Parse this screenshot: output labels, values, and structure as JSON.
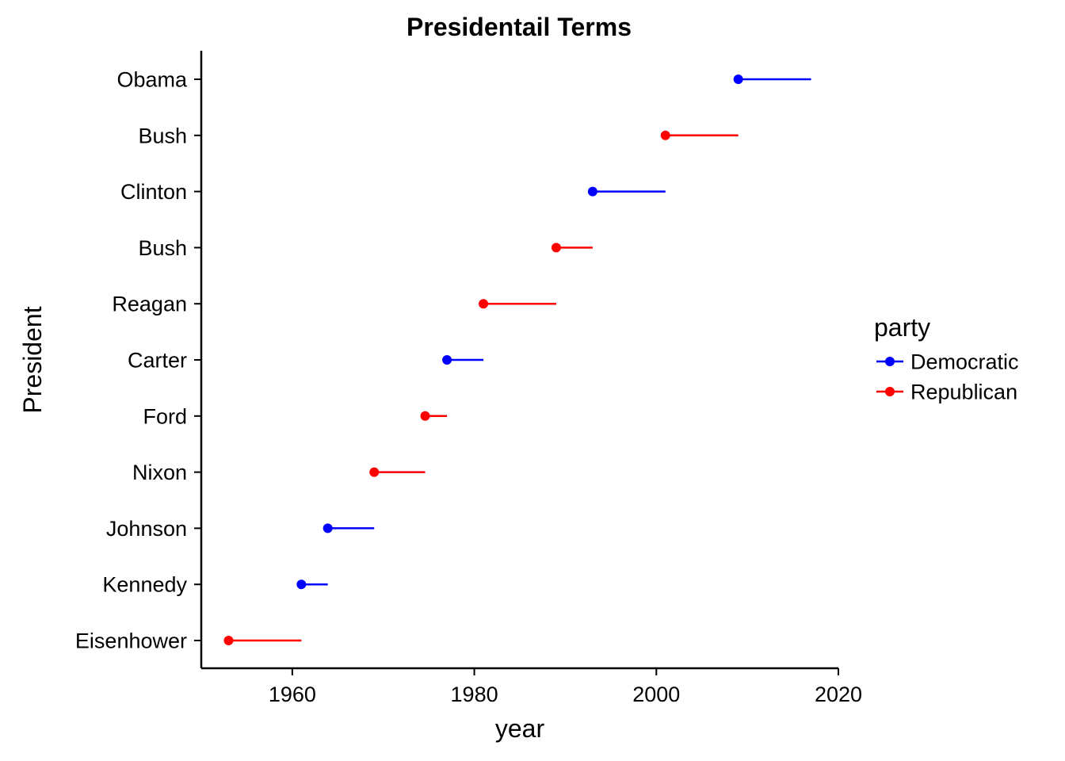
{
  "chart_data": {
    "type": "range",
    "title": "Presidentail Terms",
    "xlabel": "year",
    "ylabel": "President",
    "xlim": [
      1950,
      2020
    ],
    "xticks": [
      1960,
      1980,
      2000,
      2020
    ],
    "grid": false,
    "legend": {
      "title": "party",
      "placement": "right",
      "entries": [
        {
          "name": "Democratic",
          "color": "#0000ff"
        },
        {
          "name": "Republican",
          "color": "#ff0000"
        }
      ]
    },
    "presidents": [
      {
        "name": "Eisenhower",
        "start": 1953,
        "end": 1961,
        "party": "Republican"
      },
      {
        "name": "Kennedy",
        "start": 1961,
        "end": 1963.9,
        "party": "Democratic"
      },
      {
        "name": "Johnson",
        "start": 1963.9,
        "end": 1969,
        "party": "Democratic"
      },
      {
        "name": "Nixon",
        "start": 1969,
        "end": 1974.6,
        "party": "Republican"
      },
      {
        "name": "Ford",
        "start": 1974.6,
        "end": 1977,
        "party": "Republican"
      },
      {
        "name": "Carter",
        "start": 1977,
        "end": 1981,
        "party": "Democratic"
      },
      {
        "name": "Reagan",
        "start": 1981,
        "end": 1989,
        "party": "Republican"
      },
      {
        "name": "Bush",
        "start": 1989,
        "end": 1993,
        "party": "Republican"
      },
      {
        "name": "Clinton",
        "start": 1993,
        "end": 2001,
        "party": "Democratic"
      },
      {
        "name": "Bush",
        "start": 2001,
        "end": 2009,
        "party": "Republican"
      },
      {
        "name": "Obama",
        "start": 2009,
        "end": 2017,
        "party": "Democratic"
      }
    ]
  }
}
